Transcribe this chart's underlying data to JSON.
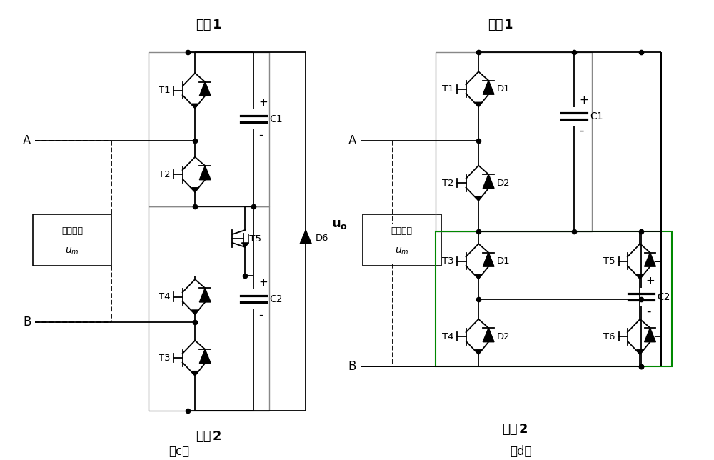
{
  "fig_width": 10.0,
  "fig_height": 6.44,
  "bg_color": "#ffffff",
  "lc": "#000000",
  "lw": 1.3,
  "label_c": "（c）",
  "label_d": "（d）",
  "mokuai": "模块",
  "dianye": "电压测量",
  "um": "uₘ",
  "uo": "uₒ",
  "A": "A",
  "B": "B"
}
